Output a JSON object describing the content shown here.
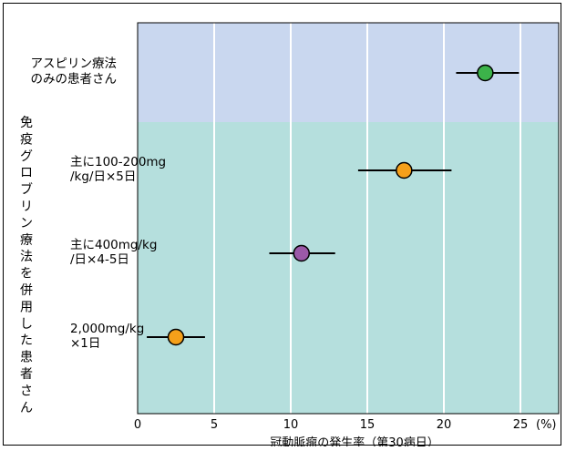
{
  "chart_data": {
    "type": "scatter",
    "title": "",
    "xlabel": "冠動脈瘤の発生率（第30病日）",
    "x_unit": "(%)",
    "xlim": [
      0,
      27.5
    ],
    "xticks": [
      0,
      5,
      10,
      15,
      20,
      25
    ],
    "grid": "vertical",
    "group_label": "免疫グロブリン療法を併用した患者さん",
    "groups": [
      {
        "label": "アスピリン療法のみの患者さん",
        "label_lines": [
          "アスピリン療法",
          "のみの患者さん"
        ],
        "background": "#c9d7ef"
      },
      {
        "label": "免疫グロブリン療法を併用した患者さん",
        "background": "#b5dfdd"
      }
    ],
    "categories": [
      {
        "label": "アスピリン療法のみの患者さん",
        "label_lines": [
          "アスピリン療法",
          "のみの患者さん"
        ]
      },
      {
        "label": "主に100-200mg/kg/日×5日",
        "label_lines": [
          "主に100-200mg",
          "/kg/日×5日"
        ]
      },
      {
        "label": "主に400mg/kg/日×4-5日",
        "label_lines": [
          "主に400mg/kg",
          "/日×4-5日"
        ]
      },
      {
        "label": "2,000mg/kg×1日",
        "label_lines": [
          "2,000mg/kg",
          "×1日"
        ]
      }
    ],
    "series": [
      {
        "values": [
          22.7,
          17.4,
          10.7,
          2.5
        ],
        "lower": [
          20.8,
          14.4,
          8.6,
          0.6
        ],
        "upper": [
          24.9,
          20.5,
          12.9,
          4.4
        ],
        "colors": [
          "#3cb34a",
          "#f5a01a",
          "#9b59a8",
          "#f5a01a"
        ]
      }
    ]
  }
}
